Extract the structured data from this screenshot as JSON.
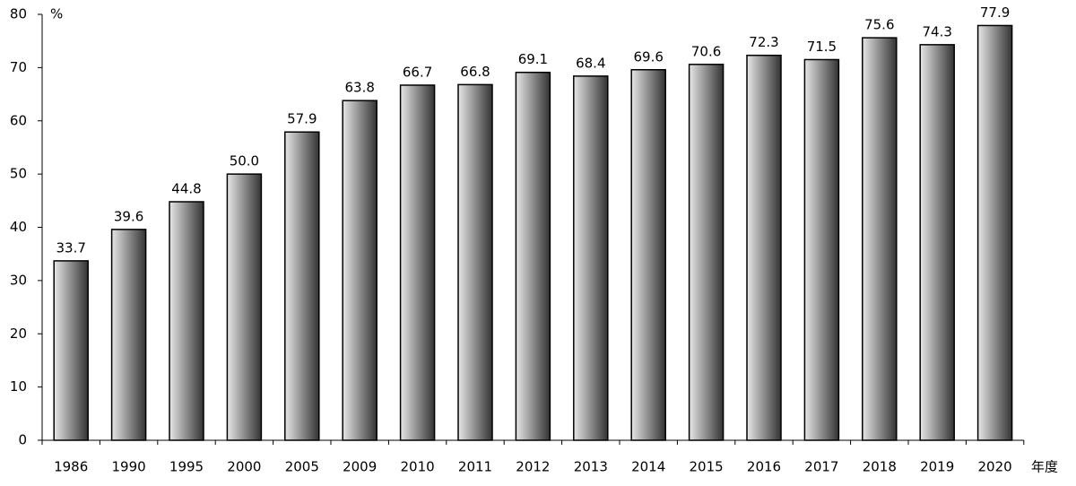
{
  "chart_data": {
    "type": "bar",
    "y_unit": "%",
    "x_label": "年度",
    "categories": [
      "1986",
      "1990",
      "1995",
      "2000",
      "2005",
      "2009",
      "2010",
      "2011",
      "2012",
      "2013",
      "2014",
      "2015",
      "2016",
      "2017",
      "2018",
      "2019",
      "2020"
    ],
    "values": [
      33.7,
      39.6,
      44.8,
      50.0,
      57.9,
      63.8,
      66.7,
      66.8,
      69.1,
      68.4,
      69.6,
      70.6,
      72.3,
      71.5,
      75.6,
      74.3,
      77.9
    ],
    "value_labels": [
      "33.7",
      "39.6",
      "44.8",
      "50.0",
      "57.9",
      "63.8",
      "66.7",
      "66.8",
      "69.1",
      "68.4",
      "69.6",
      "70.6",
      "72.3",
      "71.5",
      "75.6",
      "74.3",
      "77.9"
    ],
    "color": "#333333",
    "ylim": [
      0,
      80
    ],
    "yticks": [
      0,
      10,
      20,
      30,
      40,
      50,
      60,
      70,
      80
    ],
    "grid": false
  }
}
